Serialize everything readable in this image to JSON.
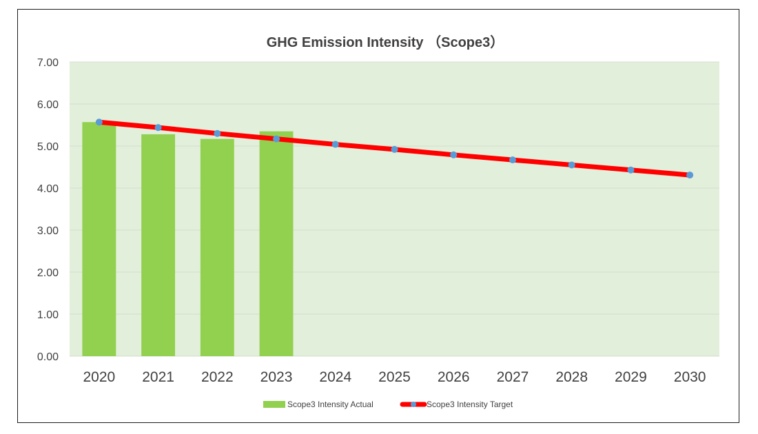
{
  "colors": {
    "plot_background": "#e2efda",
    "gridline": "#d4dccd",
    "bar": "#92d050",
    "line": "#ff0000",
    "marker": "#5b9bd5",
    "text": "#404040"
  },
  "chart_data": {
    "type": "bar",
    "title": "GHG Emission Intensity （Scope3）",
    "xlabel": "",
    "ylabel": "",
    "ylim": [
      0,
      7
    ],
    "yticks": [
      "0.00",
      "1.00",
      "2.00",
      "3.00",
      "4.00",
      "5.00",
      "6.00",
      "7.00"
    ],
    "categories": [
      "2020",
      "2021",
      "2022",
      "2023",
      "2024",
      "2025",
      "2026",
      "2027",
      "2028",
      "2029",
      "2030"
    ],
    "grid": true,
    "legend_position": "bottom",
    "series": [
      {
        "name": "Scope3 Intensity Actual",
        "type": "bar",
        "values": [
          5.57,
          5.28,
          5.17,
          5.35,
          null,
          null,
          null,
          null,
          null,
          null,
          null
        ]
      },
      {
        "name": "Scope3 Intensity Target",
        "type": "line",
        "values": [
          5.57,
          5.44,
          5.3,
          5.17,
          5.04,
          4.92,
          4.79,
          4.67,
          4.55,
          4.43,
          4.31
        ]
      }
    ]
  }
}
